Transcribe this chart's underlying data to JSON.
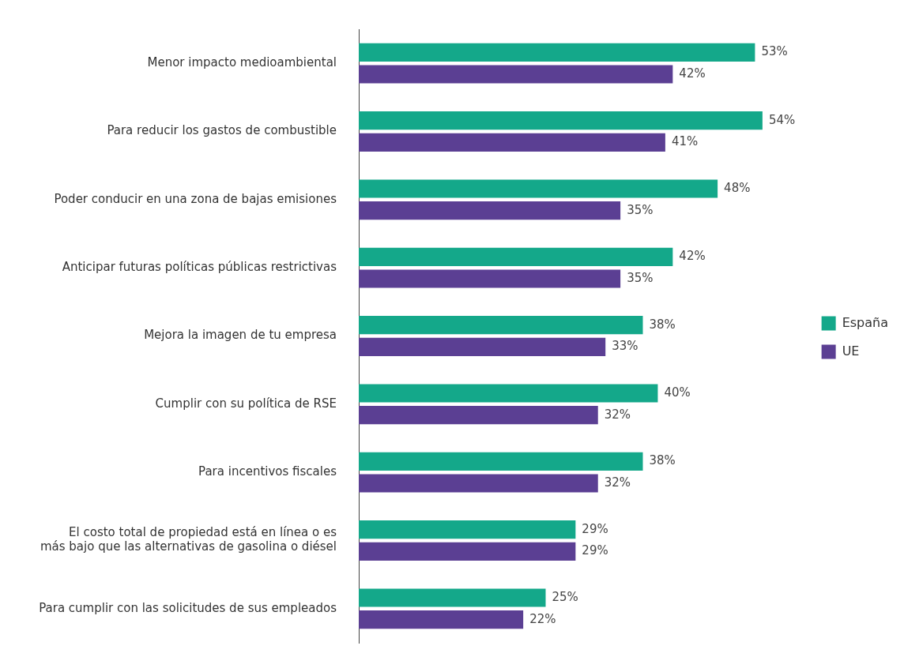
{
  "chart_data": {
    "type": "bar",
    "orientation": "horizontal",
    "categories": [
      "Menor impacto medioambiental",
      "Para reducir los gastos de combustible",
      "Poder conducir en una zona de bajas emisiones",
      "Anticipar futuras políticas públicas restrictivas",
      "Mejora la imagen de tu empresa",
      "Cumplir con su política de RSE",
      "Para incentivos fiscales",
      "El costo total de propiedad está en línea o es más bajo que las alternativas de gasolina o diésel",
      "Para cumplir con las solicitudes de sus empleados"
    ],
    "series": [
      {
        "name": "España",
        "color": "#14a88a",
        "values": [
          53,
          54,
          48,
          42,
          38,
          40,
          38,
          29,
          25
        ],
        "value_labels": [
          "53%",
          "54%",
          "48%",
          "42%",
          "38%",
          "40%",
          "38%",
          "29%",
          "25%"
        ]
      },
      {
        "name": "UE",
        "color": "#5b3f93",
        "values": [
          42,
          41,
          35,
          35,
          33,
          32,
          32,
          29,
          22
        ],
        "value_labels": [
          "42%",
          "41%",
          "35%",
          "35%",
          "33%",
          "32%",
          "32%",
          "29%",
          "22%"
        ]
      }
    ],
    "legend": "right",
    "grid": false,
    "tick_labels": "y"
  }
}
